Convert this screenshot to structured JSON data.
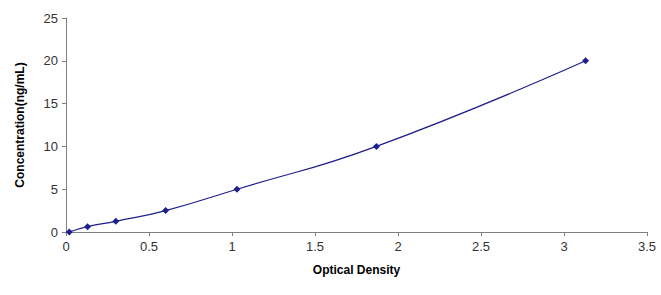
{
  "chart_data": {
    "type": "line",
    "x_label": "Optical Density",
    "y_label": "Concentration(ng/mL)",
    "x": [
      0.02,
      0.13,
      0.3,
      0.6,
      1.03,
      1.87,
      3.13
    ],
    "values": [
      0,
      0.625,
      1.25,
      2.5,
      5,
      10,
      20
    ],
    "color": "#1f1f8c",
    "marker": "diamond",
    "line_style": "solid",
    "xlim": [
      0,
      3.5
    ],
    "xticks": [
      0,
      0.5,
      1,
      1.5,
      2,
      2.5,
      3,
      3.5
    ],
    "ylim": [
      0,
      25
    ],
    "yticks": [
      0,
      5,
      10,
      15,
      20,
      25
    ],
    "grid": false
  }
}
